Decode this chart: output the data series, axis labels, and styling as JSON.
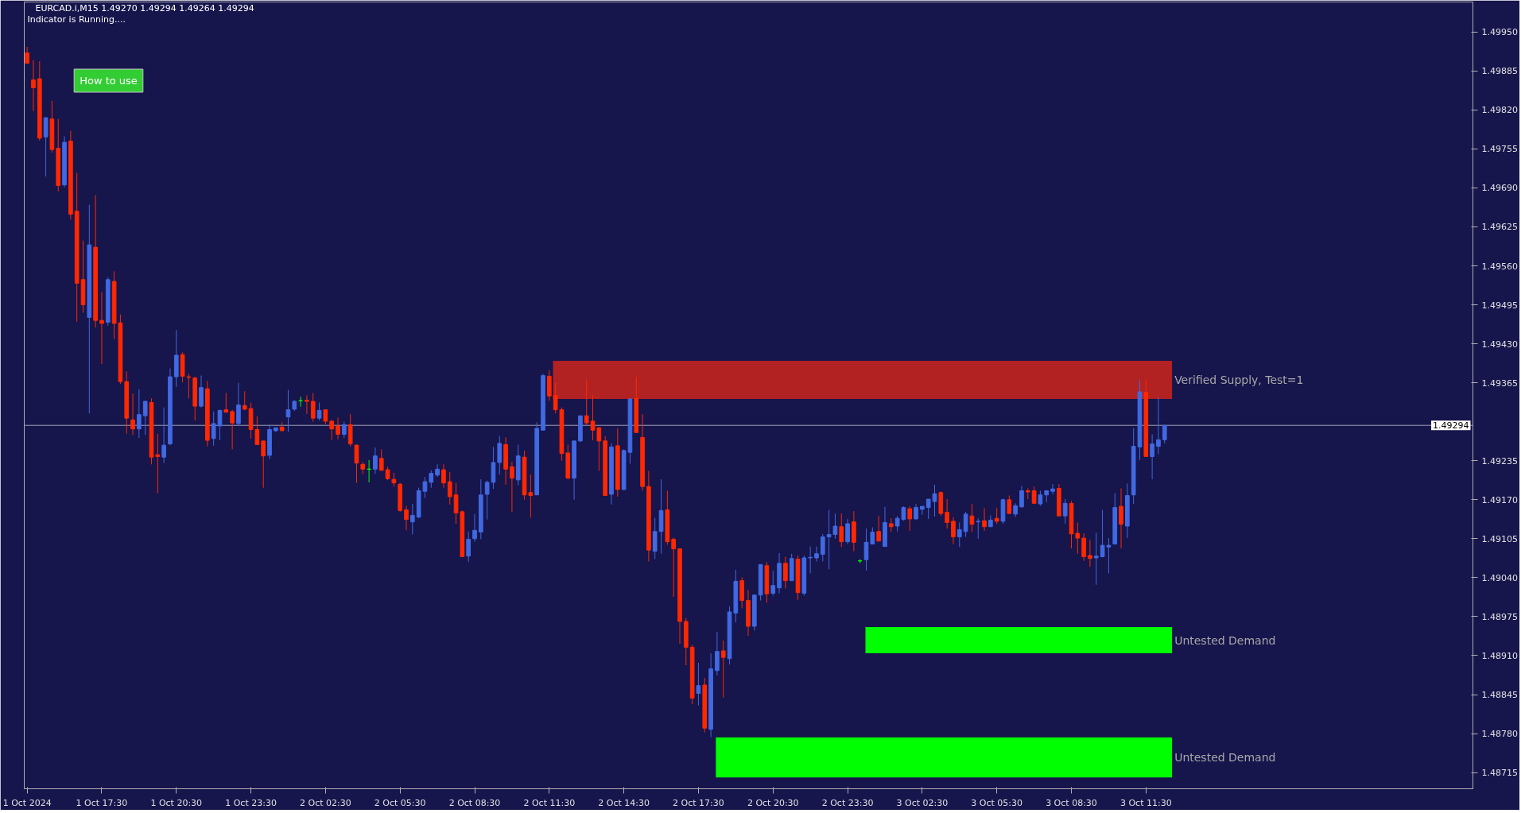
{
  "chart_data": {
    "type": "candlestick",
    "title": "EURCAD.i,M15  1.49270 1.49294 1.49264 1.49294",
    "subtitle": "Indicator is Running....",
    "annotations": [
      "How to use"
    ],
    "x": [
      "2024-10-01T14:30",
      "2024-10-01T14:45",
      "2024-10-01T15:00",
      "2024-10-01T15:15",
      "2024-10-01T15:30",
      "2024-10-01T15:45",
      "2024-10-01T16:00",
      "2024-10-01T16:15",
      "2024-10-01T16:30",
      "2024-10-01T16:45",
      "2024-10-01T17:00",
      "2024-10-01T17:15",
      "2024-10-01T17:30",
      "2024-10-01T17:45",
      "2024-10-01T18:00",
      "2024-10-01T18:15",
      "2024-10-01T18:30",
      "2024-10-01T18:45",
      "2024-10-01T19:00",
      "2024-10-01T19:15",
      "2024-10-01T19:30",
      "2024-10-01T19:45",
      "2024-10-01T20:00",
      "2024-10-01T20:15",
      "2024-10-01T20:30",
      "2024-10-01T20:45",
      "2024-10-01T21:00",
      "2024-10-01T21:15",
      "2024-10-01T21:30",
      "2024-10-01T21:45",
      "2024-10-01T22:00",
      "2024-10-01T22:15",
      "2024-10-01T22:30",
      "2024-10-01T22:45",
      "2024-10-01T23:00",
      "2024-10-01T23:15",
      "2024-10-01T23:30",
      "2024-10-01T23:45",
      "2024-10-02T00:00",
      "2024-10-02T00:15",
      "2024-10-02T00:30",
      "2024-10-02T00:45",
      "2024-10-02T01:00",
      "2024-10-02T01:15",
      "2024-10-02T01:30",
      "2024-10-02T01:45",
      "2024-10-02T02:00",
      "2024-10-02T02:15",
      "2024-10-02T02:30",
      "2024-10-02T02:45",
      "2024-10-02T03:00",
      "2024-10-02T03:15",
      "2024-10-02T03:30",
      "2024-10-02T03:45",
      "2024-10-02T04:00",
      "2024-10-02T04:15",
      "2024-10-02T04:30",
      "2024-10-02T04:45",
      "2024-10-02T05:00",
      "2024-10-02T05:15",
      "2024-10-02T05:30",
      "2024-10-02T05:45",
      "2024-10-02T06:00",
      "2024-10-02T06:15",
      "2024-10-02T06:30",
      "2024-10-02T06:45",
      "2024-10-02T07:00",
      "2024-10-02T07:15",
      "2024-10-02T07:30",
      "2024-10-02T07:45",
      "2024-10-02T08:00",
      "2024-10-02T08:15",
      "2024-10-02T08:30",
      "2024-10-02T08:45",
      "2024-10-02T09:00",
      "2024-10-02T09:15",
      "2024-10-02T09:30",
      "2024-10-02T09:45",
      "2024-10-02T10:00",
      "2024-10-02T10:15",
      "2024-10-02T10:30",
      "2024-10-02T10:45",
      "2024-10-02T11:00",
      "2024-10-02T11:15",
      "2024-10-02T11:30",
      "2024-10-02T11:45",
      "2024-10-02T12:00",
      "2024-10-02T12:15",
      "2024-10-02T12:30",
      "2024-10-02T12:45",
      "2024-10-02T13:00",
      "2024-10-02T13:15",
      "2024-10-02T13:30",
      "2024-10-02T13:45",
      "2024-10-02T14:00",
      "2024-10-02T14:15",
      "2024-10-02T14:30",
      "2024-10-02T14:45",
      "2024-10-02T15:00",
      "2024-10-02T15:15",
      "2024-10-02T15:30",
      "2024-10-02T15:45",
      "2024-10-02T16:00",
      "2024-10-02T16:15",
      "2024-10-02T16:30",
      "2024-10-02T16:45",
      "2024-10-02T17:00",
      "2024-10-02T17:15",
      "2024-10-02T17:30",
      "2024-10-02T17:45",
      "2024-10-02T18:00",
      "2024-10-02T18:15",
      "2024-10-02T18:30",
      "2024-10-02T18:45",
      "2024-10-02T19:00",
      "2024-10-02T19:15",
      "2024-10-02T19:30",
      "2024-10-02T19:45",
      "2024-10-02T20:00",
      "2024-10-02T20:15",
      "2024-10-02T20:30",
      "2024-10-02T20:45",
      "2024-10-02T21:00",
      "2024-10-02T21:15",
      "2024-10-02T21:30",
      "2024-10-02T21:45",
      "2024-10-02T22:00",
      "2024-10-02T22:15",
      "2024-10-02T22:30",
      "2024-10-02T22:45",
      "2024-10-02T23:00",
      "2024-10-02T23:15",
      "2024-10-02T23:30",
      "2024-10-02T23:45",
      "2024-10-03T00:00",
      "2024-10-03T00:15",
      "2024-10-03T00:30",
      "2024-10-03T00:45",
      "2024-10-03T01:00",
      "2024-10-03T01:15",
      "2024-10-03T01:30",
      "2024-10-03T01:45",
      "2024-10-03T02:00",
      "2024-10-03T02:15",
      "2024-10-03T02:30",
      "2024-10-03T02:45",
      "2024-10-03T03:00",
      "2024-10-03T03:15",
      "2024-10-03T03:30",
      "2024-10-03T03:45",
      "2024-10-03T04:00",
      "2024-10-03T04:15",
      "2024-10-03T04:30",
      "2024-10-03T04:45",
      "2024-10-03T05:00",
      "2024-10-03T05:15",
      "2024-10-03T05:30",
      "2024-10-03T05:45",
      "2024-10-03T06:00",
      "2024-10-03T06:15",
      "2024-10-03T06:30",
      "2024-10-03T06:45",
      "2024-10-03T07:00",
      "2024-10-03T07:15",
      "2024-10-03T07:30",
      "2024-10-03T07:45",
      "2024-10-03T08:00",
      "2024-10-03T08:15",
      "2024-10-03T08:30",
      "2024-10-03T08:45",
      "2024-10-03T09:00",
      "2024-10-03T09:15",
      "2024-10-03T09:30",
      "2024-10-03T09:45",
      "2024-10-03T10:00",
      "2024-10-03T10:15",
      "2024-10-03T10:30",
      "2024-10-03T10:45",
      "2024-10-03T11:00",
      "2024-10-03T11:15",
      "2024-10-03T11:30",
      "2024-10-03T11:45",
      "2024-10-03T12:00",
      "2024-10-03T12:15"
    ],
    "ohlc": [
      [
        1.49915,
        1.49925,
        1.49896,
        1.49898
      ],
      [
        1.4987,
        1.49903,
        1.49818,
        1.49857
      ],
      [
        1.49872,
        1.49901,
        1.49769,
        1.49773
      ],
      [
        1.49775,
        1.49808,
        1.49709,
        1.49807
      ],
      [
        1.49805,
        1.49835,
        1.49749,
        1.49754
      ],
      [
        1.49756,
        1.49805,
        1.49684,
        1.49694
      ],
      [
        1.49695,
        1.49776,
        1.49691,
        1.49766
      ],
      [
        1.49768,
        1.49785,
        1.49637,
        1.49646
      ],
      [
        1.49651,
        1.49715,
        1.49467,
        1.49531
      ],
      [
        1.49537,
        1.49602,
        1.49482,
        1.49495
      ],
      [
        1.49474,
        1.49662,
        1.49314,
        1.49595
      ],
      [
        1.49591,
        1.49678,
        1.49457,
        1.49469
      ],
      [
        1.49469,
        1.49516,
        1.49396,
        1.49464
      ],
      [
        1.49466,
        1.49541,
        1.4946,
        1.49537
      ],
      [
        1.49534,
        1.49551,
        1.49438,
        1.49464
      ],
      [
        1.49465,
        1.49479,
        1.49363,
        1.49367
      ],
      [
        1.49367,
        1.49384,
        1.4928,
        1.49306
      ],
      [
        1.49303,
        1.49347,
        1.49278,
        1.49288
      ],
      [
        1.49288,
        1.49354,
        1.49273,
        1.49312
      ],
      [
        1.4931,
        1.49335,
        1.49278,
        1.49334
      ],
      [
        1.49332,
        1.49339,
        1.49229,
        1.49241
      ],
      [
        1.49245,
        1.4928,
        1.49181,
        1.49242
      ],
      [
        1.49241,
        1.49324,
        1.49231,
        1.49261
      ],
      [
        1.49263,
        1.49389,
        1.49261,
        1.49375
      ],
      [
        1.49375,
        1.49453,
        1.49358,
        1.49411
      ],
      [
        1.49412,
        1.49416,
        1.49366,
        1.49376
      ],
      [
        1.49375,
        1.4938,
        1.49339,
        1.49374
      ],
      [
        1.49373,
        1.49375,
        1.49302,
        1.49326
      ],
      [
        1.49326,
        1.49377,
        1.49324,
        1.49357
      ],
      [
        1.49355,
        1.49368,
        1.49259,
        1.49269
      ],
      [
        1.49272,
        1.49317,
        1.4926,
        1.49297
      ],
      [
        1.49293,
        1.4932,
        1.49269,
        1.49319
      ],
      [
        1.4932,
        1.49348,
        1.49315,
        1.49316
      ],
      [
        1.49317,
        1.4932,
        1.49254,
        1.49298
      ],
      [
        1.49297,
        1.49365,
        1.49293,
        1.49328
      ],
      [
        1.49327,
        1.49351,
        1.49319,
        1.49321
      ],
      [
        1.49322,
        1.49332,
        1.49272,
        1.49287
      ],
      [
        1.49287,
        1.49309,
        1.49262,
        1.49262
      ],
      [
        1.49268,
        1.49268,
        1.4919,
        1.49243
      ],
      [
        1.49244,
        1.49295,
        1.49238,
        1.49287
      ],
      [
        1.49285,
        1.4929,
        1.49283,
        1.4929
      ],
      [
        1.49291,
        1.49299,
        1.49285,
        1.49285
      ],
      [
        1.49308,
        1.49353,
        1.49283,
        1.4932
      ],
      [
        1.49321,
        1.49336,
        1.49318,
        1.49334
      ],
      [
        1.49335,
        1.49342,
        1.49325,
        1.49335
      ],
      [
        1.49336,
        1.49344,
        1.49313,
        1.49334
      ],
      [
        1.49334,
        1.49348,
        1.493,
        1.49306
      ],
      [
        1.49306,
        1.49332,
        1.49302,
        1.49319
      ],
      [
        1.4932,
        1.4932,
        1.49296,
        1.49301
      ],
      [
        1.49301,
        1.49303,
        1.49269,
        1.49288
      ],
      [
        1.49293,
        1.49307,
        1.49271,
        1.49279
      ],
      [
        1.49279,
        1.493,
        1.49273,
        1.49295
      ],
      [
        1.49295,
        1.49313,
        1.49259,
        1.49263
      ],
      [
        1.49261,
        1.49262,
        1.49198,
        1.49231
      ],
      [
        1.49229,
        1.49233,
        1.49213,
        1.49221
      ],
      [
        1.49221,
        1.49236,
        1.49199,
        1.49221
      ],
      [
        1.49221,
        1.49257,
        1.49213,
        1.49243
      ],
      [
        1.49239,
        1.49254,
        1.49219,
        1.49219
      ],
      [
        1.4922,
        1.49225,
        1.49203,
        1.49205
      ],
      [
        1.49204,
        1.49215,
        1.49192,
        1.49198
      ],
      [
        1.49196,
        1.49198,
        1.4915,
        1.49152
      ],
      [
        1.49153,
        1.4916,
        1.49119,
        1.49137
      ],
      [
        1.49133,
        1.49163,
        1.49112,
        1.49144
      ],
      [
        1.49141,
        1.4919,
        1.49139,
        1.49185
      ],
      [
        1.49184,
        1.49208,
        1.49173,
        1.492
      ],
      [
        1.49199,
        1.49219,
        1.4919,
        1.49214
      ],
      [
        1.49211,
        1.49229,
        1.49208,
        1.49221
      ],
      [
        1.4922,
        1.49229,
        1.4919,
        1.49198
      ],
      [
        1.492,
        1.49216,
        1.49162,
        1.49175
      ],
      [
        1.49178,
        1.49198,
        1.4913,
        1.49148
      ],
      [
        1.4915,
        1.49152,
        1.49075,
        1.49075
      ],
      [
        1.49076,
        1.49117,
        1.49066,
        1.49104
      ],
      [
        1.49105,
        1.49146,
        1.491,
        1.49119
      ],
      [
        1.49116,
        1.49204,
        1.49104,
        1.49178
      ],
      [
        1.49179,
        1.49202,
        1.49137,
        1.49199
      ],
      [
        1.49199,
        1.49258,
        1.49188,
        1.49232
      ],
      [
        1.49232,
        1.49276,
        1.49212,
        1.49264
      ],
      [
        1.49262,
        1.49274,
        1.49195,
        1.49221
      ],
      [
        1.49225,
        1.49233,
        1.4915,
        1.49206
      ],
      [
        1.49203,
        1.49262,
        1.49194,
        1.49243
      ],
      [
        1.49241,
        1.49252,
        1.4917,
        1.49178
      ],
      [
        1.49182,
        1.49212,
        1.4914,
        1.49177
      ],
      [
        1.49178,
        1.49299,
        1.49178,
        1.49289
      ],
      [
        1.49286,
        1.4938,
        1.49286,
        1.49377
      ],
      [
        1.49376,
        1.49386,
        1.49335,
        1.49343
      ],
      [
        1.49344,
        1.49365,
        1.49314,
        1.4932
      ],
      [
        1.4932,
        1.49324,
        1.49235,
        1.49247
      ],
      [
        1.49248,
        1.49262,
        1.49204,
        1.49206
      ],
      [
        1.49206,
        1.49268,
        1.4917,
        1.49268
      ],
      [
        1.49268,
        1.4931,
        1.49266,
        1.4931
      ],
      [
        1.4931,
        1.49371,
        1.49294,
        1.49298
      ],
      [
        1.49301,
        1.49344,
        1.49269,
        1.49286
      ],
      [
        1.4929,
        1.49291,
        1.49218,
        1.49268
      ],
      [
        1.49268,
        1.49276,
        1.49177,
        1.49177
      ],
      [
        1.49179,
        1.49264,
        1.49162,
        1.49258
      ],
      [
        1.4926,
        1.49289,
        1.49175,
        1.49187
      ],
      [
        1.49187,
        1.49254,
        1.49186,
        1.49252
      ],
      [
        1.49249,
        1.49339,
        1.4923,
        1.49338
      ],
      [
        1.49339,
        1.49375,
        1.49282,
        1.49282
      ],
      [
        1.49274,
        1.49313,
        1.49185,
        1.49192
      ],
      [
        1.49192,
        1.49218,
        1.49067,
        1.49086
      ],
      [
        1.49084,
        1.4914,
        1.49071,
        1.49117
      ],
      [
        1.49117,
        1.49204,
        1.4908,
        1.49152
      ],
      [
        1.49153,
        1.49185,
        1.49095,
        1.491
      ],
      [
        1.49104,
        1.49107,
        1.49008,
        1.49088
      ],
      [
        1.49088,
        1.49089,
        1.4893,
        1.48967
      ],
      [
        1.48967,
        1.48973,
        1.48894,
        1.48924
      ],
      [
        1.48924,
        1.48928,
        1.48829,
        1.48839
      ],
      [
        1.48847,
        1.48898,
        1.48827,
        1.4886
      ],
      [
        1.48861,
        1.48873,
        1.48782,
        1.48789
      ],
      [
        1.48787,
        1.48914,
        1.48774,
        1.48888
      ],
      [
        1.48885,
        1.4895,
        1.48877,
        1.48917
      ],
      [
        1.48918,
        1.48935,
        1.4884,
        1.48907
      ],
      [
        1.48905,
        1.48992,
        1.48895,
        1.48983
      ],
      [
        1.48981,
        1.49053,
        1.48965,
        1.49034
      ],
      [
        1.49035,
        1.49041,
        1.48989,
        1.49002
      ],
      [
        1.49002,
        1.4902,
        1.48943,
        1.48959
      ],
      [
        1.48959,
        1.49011,
        1.48952,
        1.49011
      ],
      [
        1.49011,
        1.49062,
        1.49002,
        1.49062
      ],
      [
        1.4906,
        1.49066,
        1.48998,
        1.49013
      ],
      [
        1.49014,
        1.49052,
        1.4901,
        1.49027
      ],
      [
        1.49023,
        1.49081,
        1.49014,
        1.49064
      ],
      [
        1.49064,
        1.49075,
        1.49022,
        1.49035
      ],
      [
        1.49035,
        1.4908,
        1.49035,
        1.49072
      ],
      [
        1.49071,
        1.49077,
        1.49003,
        1.49015
      ],
      [
        1.49014,
        1.49077,
        1.4901,
        1.49073
      ],
      [
        1.49073,
        1.49092,
        1.49047,
        1.49074
      ],
      [
        1.49073,
        1.49092,
        1.49067,
        1.4908
      ],
      [
        1.49079,
        1.49113,
        1.49067,
        1.49108
      ],
      [
        1.49108,
        1.49153,
        1.49054,
        1.49112
      ],
      [
        1.49112,
        1.49147,
        1.49105,
        1.49126
      ],
      [
        1.49125,
        1.49147,
        1.49091,
        1.491
      ],
      [
        1.491,
        1.49138,
        1.49096,
        1.4913
      ],
      [
        1.49133,
        1.49151,
        1.49084,
        1.49099
      ],
      [
        1.49068,
        1.49071,
        1.49064,
        1.49068
      ],
      [
        1.4907,
        1.49122,
        1.49052,
        1.49099
      ],
      [
        1.49096,
        1.49124,
        1.49096,
        1.49116
      ],
      [
        1.49117,
        1.49143,
        1.49101,
        1.49101
      ],
      [
        1.49092,
        1.49158,
        1.49092,
        1.49132
      ],
      [
        1.4913,
        1.49139,
        1.49116,
        1.49125
      ],
      [
        1.49126,
        1.49143,
        1.49117,
        1.49139
      ],
      [
        1.49137,
        1.49159,
        1.49135,
        1.49157
      ],
      [
        1.49155,
        1.49159,
        1.49118,
        1.49138
      ],
      [
        1.49138,
        1.49163,
        1.49137,
        1.49157
      ],
      [
        1.49154,
        1.49159,
        1.49145,
        1.49159
      ],
      [
        1.49157,
        1.49171,
        1.49138,
        1.49171
      ],
      [
        1.49167,
        1.49195,
        1.49142,
        1.4918
      ],
      [
        1.49182,
        1.49184,
        1.49143,
        1.49147
      ],
      [
        1.49149,
        1.49171,
        1.49122,
        1.49132
      ],
      [
        1.49134,
        1.49141,
        1.49096,
        1.49108
      ],
      [
        1.49108,
        1.49132,
        1.49091,
        1.4912
      ],
      [
        1.49117,
        1.4915,
        1.49108,
        1.49146
      ],
      [
        1.49143,
        1.49163,
        1.49116,
        1.49129
      ],
      [
        1.49133,
        1.49139,
        1.49105,
        1.49134
      ],
      [
        1.49135,
        1.49156,
        1.49118,
        1.49125
      ],
      [
        1.49125,
        1.49144,
        1.49125,
        1.49136
      ],
      [
        1.49139,
        1.49156,
        1.4913,
        1.49134
      ],
      [
        1.49134,
        1.49172,
        1.4913,
        1.4917
      ],
      [
        1.4917,
        1.49177,
        1.49146,
        1.49147
      ],
      [
        1.49146,
        1.49164,
        1.49141,
        1.4916
      ],
      [
        1.49158,
        1.49193,
        1.49157,
        1.49185
      ],
      [
        1.49185,
        1.49189,
        1.49171,
        1.49183
      ],
      [
        1.49185,
        1.49192,
        1.49163,
        1.49164
      ],
      [
        1.49163,
        1.49185,
        1.4916,
        1.49178
      ],
      [
        1.49178,
        1.49185,
        1.49166,
        1.49185
      ],
      [
        1.49184,
        1.49196,
        1.49179,
        1.49188
      ],
      [
        1.49189,
        1.49196,
        1.49142,
        1.49143
      ],
      [
        1.49143,
        1.49171,
        1.4913,
        1.49164
      ],
      [
        1.49164,
        1.49168,
        1.49089,
        1.49113
      ],
      [
        1.49114,
        1.49132,
        1.4908,
        1.49106
      ],
      [
        1.49106,
        1.49114,
        1.49068,
        1.49075
      ],
      [
        1.49077,
        1.49103,
        1.49058,
        1.49072
      ],
      [
        1.49073,
        1.49115,
        1.49028,
        1.49076
      ],
      [
        1.49075,
        1.49153,
        1.49074,
        1.49094
      ],
      [
        1.49091,
        1.49106,
        1.49047,
        1.49094
      ],
      [
        1.49096,
        1.49181,
        1.49096,
        1.49157
      ],
      [
        1.49159,
        1.49189,
        1.49089,
        1.49129
      ],
      [
        1.49126,
        1.49197,
        1.49106,
        1.49177
      ],
      [
        1.49178,
        1.49289,
        1.49163,
        1.49259
      ],
      [
        1.49258,
        1.4937,
        1.49236,
        1.4935
      ],
      [
        1.49349,
        1.49371,
        1.49242,
        1.49242
      ],
      [
        1.49242,
        1.49279,
        1.49204,
        1.49263
      ],
      [
        1.49259,
        1.49341,
        1.49246,
        1.4927
      ],
      [
        1.4927,
        1.49294,
        1.49264,
        1.49294
      ]
    ],
    "colors": [
      "#ff2800",
      "#ff2800",
      "#ff2800",
      "#4169e1",
      "#ff2800",
      "#ff2800",
      "#4169e1",
      "#ff2800",
      "#ff2800",
      "#ff2800",
      "#4169e1",
      "#ff2800",
      "#ff2800",
      "#4169e1",
      "#ff2800",
      "#ff2800",
      "#ff2800",
      "#ff2800",
      "#4169e1",
      "#4169e1",
      "#ff2800",
      "#ff2800",
      "#4169e1",
      "#4169e1",
      "#4169e1",
      "#ff2800",
      "#ff2800",
      "#ff2800",
      "#4169e1",
      "#ff2800",
      "#4169e1",
      "#4169e1",
      "#ff2800",
      "#ff2800",
      "#4169e1",
      "#ff2800",
      "#ff2800",
      "#ff2800",
      "#ff2800",
      "#4169e1",
      "#4169e1",
      "#ff2800",
      "#4169e1",
      "#4169e1",
      "#00ff00",
      "#ff2800",
      "#ff2800",
      "#4169e1",
      "#ff2800",
      "#ff2800",
      "#ff2800",
      "#4169e1",
      "#ff2800",
      "#ff2800",
      "#ff2800",
      "#00ff00",
      "#4169e1",
      "#ff2800",
      "#ff2800",
      "#ff2800",
      "#ff2800",
      "#ff2800",
      "#4169e1",
      "#4169e1",
      "#4169e1",
      "#4169e1",
      "#4169e1",
      "#ff2800",
      "#ff2800",
      "#ff2800",
      "#ff2800",
      "#4169e1",
      "#4169e1",
      "#4169e1",
      "#4169e1",
      "#4169e1",
      "#4169e1",
      "#ff2800",
      "#ff2800",
      "#4169e1",
      "#ff2800",
      "#ff2800",
      "#4169e1",
      "#4169e1",
      "#ff2800",
      "#ff2800",
      "#ff2800",
      "#ff2800",
      "#4169e1",
      "#4169e1",
      "#ff2800",
      "#ff2800",
      "#ff2800",
      "#ff2800",
      "#4169e1",
      "#ff2800",
      "#4169e1",
      "#4169e1",
      "#ff2800",
      "#ff2800",
      "#ff2800",
      "#4169e1",
      "#4169e1",
      "#ff2800",
      "#ff2800",
      "#ff2800",
      "#ff2800",
      "#ff2800",
      "#4169e1",
      "#ff2800",
      "#4169e1",
      "#4169e1",
      "#ff2800",
      "#4169e1",
      "#4169e1",
      "#ff2800",
      "#ff2800",
      "#4169e1",
      "#4169e1",
      "#ff2800",
      "#4169e1",
      "#4169e1",
      "#ff2800",
      "#4169e1",
      "#ff2800",
      "#4169e1",
      "#4169e1",
      "#4169e1",
      "#4169e1",
      "#4169e1",
      "#4169e1",
      "#ff2800",
      "#4169e1",
      "#ff2800",
      "#00ff00",
      "#4169e1",
      "#4169e1",
      "#ff2800",
      "#4169e1",
      "#ff2800",
      "#4169e1",
      "#4169e1",
      "#ff2800",
      "#4169e1",
      "#4169e1",
      "#4169e1",
      "#4169e1",
      "#ff2800",
      "#ff2800",
      "#ff2800",
      "#4169e1",
      "#4169e1",
      "#ff2800",
      "#4169e1",
      "#ff2800",
      "#4169e1",
      "#ff2800",
      "#4169e1",
      "#ff2800",
      "#4169e1",
      "#4169e1",
      "#ff2800",
      "#ff2800",
      "#4169e1",
      "#4169e1",
      "#4169e1",
      "#ff2800",
      "#4169e1",
      "#ff2800",
      "#ff2800",
      "#ff2800",
      "#ff2800",
      "#4169e1",
      "#4169e1",
      "#4169e1",
      "#4169e1",
      "#ff2800",
      "#4169e1",
      "#4169e1",
      "#4169e1",
      "#ff2800",
      "#4169e1",
      "#4169e1",
      "#4169e1"
    ],
    "xlim": [
      "2024-10-01T14:23",
      "2024-10-04T00:39"
    ],
    "xticks": [
      {
        "value": "2024-10-01T14:30",
        "label": "1 Oct 2024"
      },
      {
        "value": "2024-10-01T17:30",
        "label": "1 Oct 17:30"
      },
      {
        "value": "2024-10-01T20:30",
        "label": "1 Oct 20:30"
      },
      {
        "value": "2024-10-01T23:30",
        "label": "1 Oct 23:30"
      },
      {
        "value": "2024-10-02T02:30",
        "label": "2 Oct 02:30"
      },
      {
        "value": "2024-10-02T05:30",
        "label": "2 Oct 05:30"
      },
      {
        "value": "2024-10-02T08:30",
        "label": "2 Oct 08:30"
      },
      {
        "value": "2024-10-02T11:30",
        "label": "2 Oct 11:30"
      },
      {
        "value": "2024-10-02T14:30",
        "label": "2 Oct 14:30"
      },
      {
        "value": "2024-10-02T17:30",
        "label": "2 Oct 17:30"
      },
      {
        "value": "2024-10-02T20:30",
        "label": "2 Oct 20:30"
      },
      {
        "value": "2024-10-02T23:30",
        "label": "2 Oct 23:30"
      },
      {
        "value": "2024-10-03T02:30",
        "label": "3 Oct 02:30"
      },
      {
        "value": "2024-10-03T05:30",
        "label": "3 Oct 05:30"
      },
      {
        "value": "2024-10-03T08:30",
        "label": "3 Oct 08:30"
      },
      {
        "value": "2024-10-03T11:30",
        "label": "3 Oct 11:30"
      }
    ],
    "ylim": [
      1.48688,
      1.5
    ],
    "yticks": [
      {
        "value": 1.4995,
        "label": "1.49950"
      },
      1.49885,
      {
        "value": 1.4982,
        "label": "1.49820"
      },
      1.49755,
      {
        "value": 1.4969,
        "label": "1.49690"
      },
      1.49625,
      {
        "value": 1.4956,
        "label": "1.49560"
      },
      1.49495,
      {
        "value": 1.4943,
        "label": "1.49430"
      },
      1.49365,
      1.49235,
      {
        "value": 1.4917,
        "label": "1.49170"
      },
      1.49105,
      {
        "value": 1.4904,
        "label": "1.49040"
      },
      1.48975,
      {
        "value": 1.4891,
        "label": "1.48910"
      },
      1.48845,
      {
        "value": 1.4878,
        "label": "1.48780"
      },
      1.48715
    ],
    "ref_lines": [
      {
        "axis": "y",
        "value": 1.49294,
        "label": "1.49294",
        "color": "#a0a0b4"
      }
    ],
    "series": [
      {
        "type": "line",
        "name": "Verified Supply, Test=1",
        "color": "#b22222",
        "x": [
          "2024-10-02T11:39",
          "2024-10-03T12:33"
        ],
        "values": [
          1.49401,
          1.49401
        ],
        "upper": [
          1.49401,
          1.49401
        ],
        "lower": [
          1.49338,
          1.49338
        ]
      },
      {
        "type": "line",
        "name": "Untested Demand",
        "color": "#00ff00",
        "x": [
          "2024-10-03T00:13",
          "2024-10-03T12:33"
        ],
        "values": [
          1.48957,
          1.48957
        ],
        "upper": [
          1.48957,
          1.48957
        ],
        "lower": [
          1.48914,
          1.48914
        ]
      },
      {
        "type": "line",
        "name": "Untested Demand",
        "color": "#00ff00",
        "x": [
          "2024-10-02T18:12",
          "2024-10-03T12:33"
        ],
        "values": [
          1.48773,
          1.48773
        ],
        "upper": [
          1.48773,
          1.48773
        ],
        "lower": [
          1.48707,
          1.48707
        ]
      }
    ]
  }
}
